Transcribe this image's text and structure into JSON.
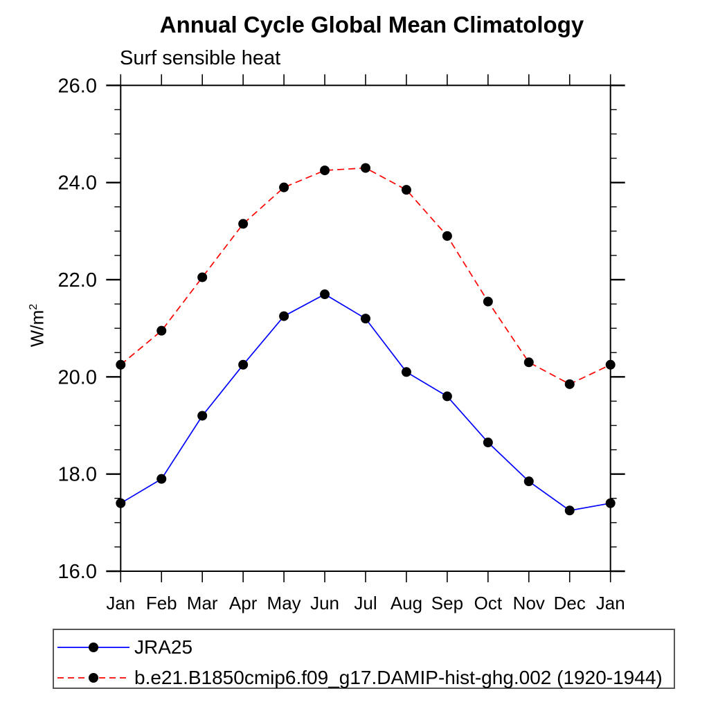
{
  "chart_data": {
    "type": "line",
    "title": "Annual Cycle Global Mean Climatology",
    "subtitle": "Surf sensible heat",
    "ylabel_base": "W/m",
    "ylabel_exponent": "2",
    "x_categories": [
      "Jan",
      "Feb",
      "Mar",
      "Apr",
      "May",
      "Jun",
      "Jul",
      "Aug",
      "Sep",
      "Oct",
      "Nov",
      "Dec",
      "Jan"
    ],
    "ylim": [
      16.0,
      26.0
    ],
    "y_major_tick_labels": [
      "16.0",
      "18.0",
      "20.0",
      "22.0",
      "24.0",
      "26.0"
    ],
    "y_major_tick_values": [
      16,
      18,
      20,
      22,
      24,
      26
    ],
    "y_minor_step": 0.5,
    "grid": false,
    "legend_position": "bottom",
    "axis_color": "#000000",
    "marker": "circle",
    "marker_color": "#000000",
    "series": [
      {
        "name": "JRA25",
        "color": "#0000ff",
        "line_style": "solid",
        "values": [
          17.4,
          17.9,
          19.2,
          20.25,
          21.25,
          21.7,
          21.2,
          20.1,
          19.6,
          18.65,
          17.85,
          17.25,
          17.4
        ]
      },
      {
        "name": "b.e21.B1850cmip6.f09_g17.DAMIP-hist-ghg.002 (1920-1944)",
        "color": "#ff0000",
        "line_style": "dashed",
        "values": [
          20.25,
          20.95,
          22.05,
          23.15,
          23.9,
          24.25,
          24.3,
          23.85,
          22.9,
          21.55,
          20.3,
          19.85,
          20.25
        ]
      }
    ]
  }
}
